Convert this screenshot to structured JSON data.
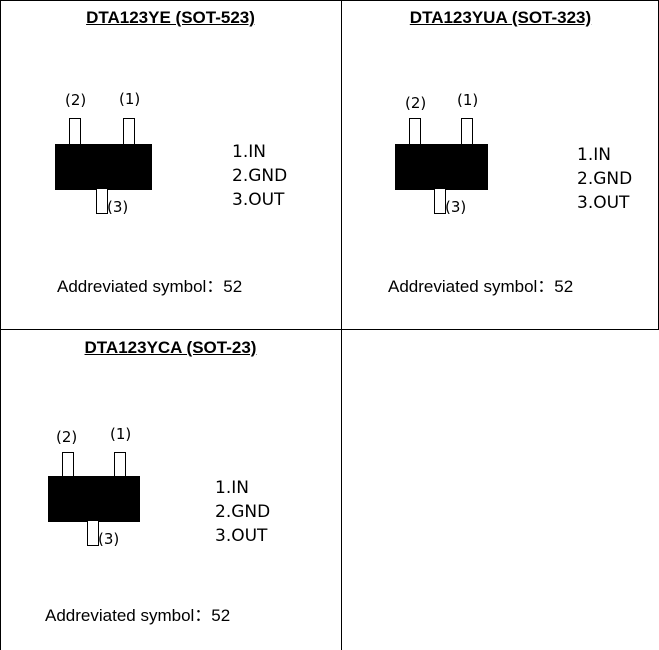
{
  "cells": [
    {
      "title": "DTA123YE (SOT-523)",
      "pin1_label": "(1)",
      "pin2_label": "(2)",
      "pin3_label": "(3)",
      "pins": [
        "1.IN",
        "2.GND",
        "3.OUT"
      ],
      "abbreviation": "Addreviated symbol：52"
    },
    {
      "title": "DTA123YUA (SOT-323)",
      "pin1_label": "(1)",
      "pin2_label": "(2)",
      "pin3_label": "(3)",
      "pins": [
        "1.IN",
        "2.GND",
        "3.OUT"
      ],
      "abbreviation": "Addreviated symbol：52"
    },
    {
      "title": "DTA123YCA (SOT-23)",
      "pin1_label": "(1)",
      "pin2_label": "(2)",
      "pin3_label": "(3)",
      "pins": [
        "1.IN",
        "2.GND",
        "3.OUT"
      ],
      "abbreviation": "Addreviated symbol：52"
    }
  ]
}
